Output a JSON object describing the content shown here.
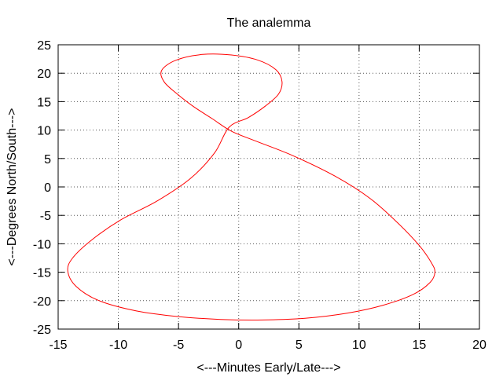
{
  "chart_data": {
    "type": "line",
    "title": "The analemma",
    "xlabel": "<---Minutes Early/Late--->",
    "ylabel": "<---Degrees North/South--->",
    "xlim": [
      -15,
      20
    ],
    "ylim": [
      -25,
      25
    ],
    "xticks": [
      -15,
      -10,
      -5,
      0,
      5,
      10,
      15,
      20
    ],
    "yticks": [
      -25,
      -20,
      -15,
      -10,
      -5,
      0,
      5,
      10,
      15,
      20,
      25
    ],
    "grid": true,
    "series": [
      {
        "color": "#ff0000",
        "points": [
          [
            -0.8,
            10.5
          ],
          [
            0.8,
            12.2
          ],
          [
            2.2,
            14.2
          ],
          [
            3.3,
            16.3
          ],
          [
            3.6,
            18.5
          ],
          [
            3.1,
            20.6
          ],
          [
            1.6,
            22.3
          ],
          [
            -0.6,
            23.2
          ],
          [
            -3.0,
            23.3
          ],
          [
            -5.2,
            22.3
          ],
          [
            -6.4,
            20.5
          ],
          [
            -6.2,
            18.5
          ],
          [
            -5.2,
            16.5
          ],
          [
            -3.8,
            14.2
          ],
          [
            -2.2,
            12.0
          ],
          [
            -0.6,
            9.8
          ],
          [
            1.5,
            8.0
          ],
          [
            4.5,
            5.5
          ],
          [
            8.0,
            1.9
          ],
          [
            10.9,
            -2.0
          ],
          [
            13.2,
            -6.3
          ],
          [
            15.0,
            -10.3
          ],
          [
            16.0,
            -13.3
          ],
          [
            16.3,
            -15.0
          ],
          [
            15.9,
            -16.8
          ],
          [
            14.5,
            -18.9
          ],
          [
            12.0,
            -20.8
          ],
          [
            9.0,
            -22.2
          ],
          [
            5.5,
            -23.1
          ],
          [
            2.0,
            -23.4
          ],
          [
            -1.5,
            -23.3
          ],
          [
            -5.0,
            -22.8
          ],
          [
            -8.5,
            -21.8
          ],
          [
            -11.6,
            -20.0
          ],
          [
            -13.5,
            -17.5
          ],
          [
            -14.2,
            -14.8
          ],
          [
            -13.8,
            -12.5
          ],
          [
            -12.2,
            -9.3
          ],
          [
            -9.8,
            -5.8
          ],
          [
            -6.8,
            -2.5
          ],
          [
            -4.0,
            1.5
          ],
          [
            -2.0,
            6.0
          ],
          [
            -0.8,
            10.5
          ]
        ]
      }
    ]
  }
}
